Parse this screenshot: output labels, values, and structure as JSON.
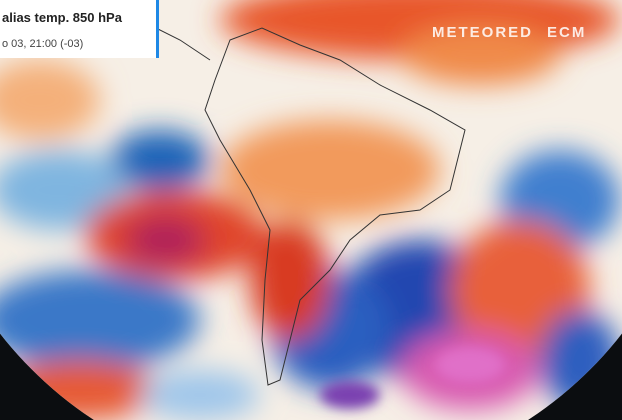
{
  "header": {
    "title": "alias temp. 850 hPa",
    "subtitle": "o 03, 21:00 (-03)"
  },
  "watermark": {
    "brand": "METEORED",
    "source": "ECM"
  }
}
